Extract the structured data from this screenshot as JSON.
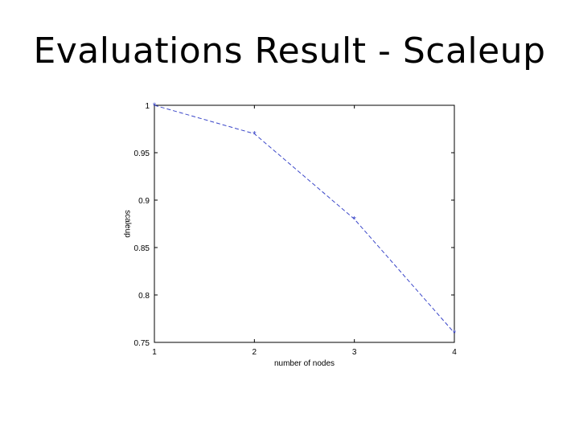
{
  "slide": {
    "title": "Evaluations Result - Scaleup"
  },
  "colors": {
    "series": "#3b47c9",
    "axis": "#000000"
  },
  "chart_data": {
    "type": "line",
    "title": "",
    "xlabel": "number of nodes",
    "ylabel": "scaleup",
    "x": [
      1,
      2,
      3,
      4
    ],
    "xlim": [
      1,
      4
    ],
    "ylim": [
      0.75,
      1
    ],
    "xticks": [
      "1",
      "2",
      "3",
      "4"
    ],
    "yticks": [
      "0.75",
      "0.8",
      "0.85",
      "0.9",
      "0.95",
      "1"
    ],
    "grid": false,
    "series": [
      {
        "values": [
          1.0,
          0.97,
          0.88,
          0.76
        ],
        "line_style": "dashed",
        "marker": "*"
      }
    ]
  }
}
